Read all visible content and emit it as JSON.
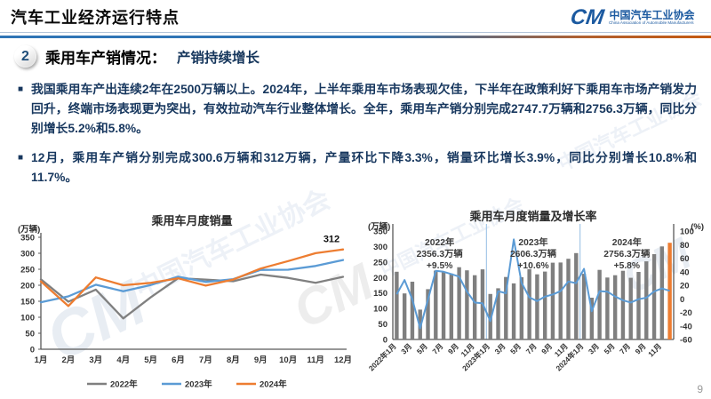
{
  "page": {
    "number": "9",
    "watermark_text": "中国汽车工业协会",
    "watermark_cm": "CM"
  },
  "header": {
    "title": "汽车工业经济运行特点",
    "logo": {
      "mark": "CM",
      "org_cn": "中国汽车工业协会",
      "org_en": "China Association of Automobile Manufacturers"
    }
  },
  "section": {
    "number": "2",
    "title": "乘用车产销情况：",
    "subtitle": "产销持续增长"
  },
  "bullets": [
    "我国乘用车产出连续2年在2500万辆以上。2024年，上半年乘用车市场表现欠佳，下半年在政策利好下乘用车市场产销发力回升，终端市场表现更为突出，有效拉动汽车行业整体增长。全年，乘用车产销分别完成2747.7万辆和2756.3万辆，同比分别增长5.2%和5.8%。",
    "12月，乘用车产销分别完成300.6万辆和312万辆，产量环比下降3.3%，销量环比增长3.9%，同比分别增长10.8%和11.7%。"
  ],
  "chart_data": [
    {
      "type": "line",
      "title": "乘用车月度销量",
      "y_unit": "(万辆)",
      "ylim": [
        0,
        350
      ],
      "ytick_step": 50,
      "grid": false,
      "legend_position": "bottom",
      "categories": [
        "1月",
        "2月",
        "3月",
        "4月",
        "5月",
        "6月",
        "7月",
        "8月",
        "9月",
        "10月",
        "11月",
        "12月"
      ],
      "series": [
        {
          "name": "2022年",
          "color": "#808080",
          "values": [
            218.6,
            148.7,
            186.4,
            96.5,
            162.3,
            222.2,
            217.4,
            212.5,
            233.2,
            223.1,
            207.5,
            226.3
          ]
        },
        {
          "name": "2023年",
          "color": "#5B9BD5",
          "values": [
            146.9,
            165.3,
            201.7,
            181.1,
            200.9,
            226.8,
            210.3,
            219.2,
            248.0,
            248.5,
            260.4,
            278.8
          ]
        },
        {
          "name": "2024年",
          "color": "#ED7D31",
          "values": [
            211.9,
            134.9,
            224.5,
            200.1,
            207.5,
            221.8,
            199.0,
            217.9,
            252.3,
            275.5,
            300.3,
            312
          ]
        }
      ],
      "end_label": {
        "series_index": 2,
        "point_index": 11,
        "text": "312"
      }
    },
    {
      "type": "combo-bar-line",
      "title": "乘用车月度销量及增长率",
      "left_unit": "(万辆)",
      "right_unit": "(%)",
      "left_ylim": [
        0,
        350
      ],
      "left_step": 50,
      "right_ylim": [
        -60,
        100
      ],
      "right_step": 20,
      "bar_color": "#7F7F7F",
      "last_bar_color": "#ED7D31",
      "line_color": "#5B9BD5",
      "separator_color": "#9DC3E6",
      "separators_after_index": [
        11,
        23
      ],
      "x_tick_interval": 2,
      "x_tick_labels": [
        "2022年1月",
        "3月",
        "5月",
        "7月",
        "9月",
        "11月",
        "2023年1月",
        "3月",
        "5月",
        "7月",
        "9月",
        "11月",
        "2024年1月",
        "3月",
        "5月",
        "7月",
        "9月",
        "11月"
      ],
      "bars": [
        218.6,
        148.7,
        186.4,
        96.5,
        162.3,
        222.2,
        217.4,
        212.5,
        233.2,
        223.1,
        207.5,
        226.3,
        146.9,
        165.3,
        201.7,
        181.1,
        200.9,
        226.8,
        210.3,
        219.2,
        248.0,
        248.5,
        260.4,
        278.8,
        211.9,
        134.9,
        224.5,
        200.1,
        207.5,
        221.8,
        199.0,
        217.9,
        252.3,
        275.5,
        300.3,
        312
      ],
      "growth": [
        6.7,
        27.8,
        -0.6,
        -43.4,
        -1.4,
        41.2,
        40.0,
        36.5,
        32.7,
        10.7,
        -5.6,
        -6.6,
        -32.8,
        11.2,
        8.2,
        87.7,
        23.8,
        2.1,
        -3.3,
        3.2,
        6.3,
        11.4,
        25.5,
        23.2,
        44.2,
        -18.4,
        11.3,
        10.5,
        3.3,
        -2.2,
        -5.4,
        -0.6,
        1.7,
        10.9,
        15.3,
        11.7
      ],
      "year_annotations": [
        {
          "year": "2022年",
          "total": "2356.3万辆",
          "growth": "+9.5%"
        },
        {
          "year": "2023年",
          "total": "2606.3万辆",
          "growth": "+10.6%"
        },
        {
          "year": "2024年",
          "total": "2756.3万辆",
          "growth": "+5.8%"
        }
      ]
    }
  ]
}
